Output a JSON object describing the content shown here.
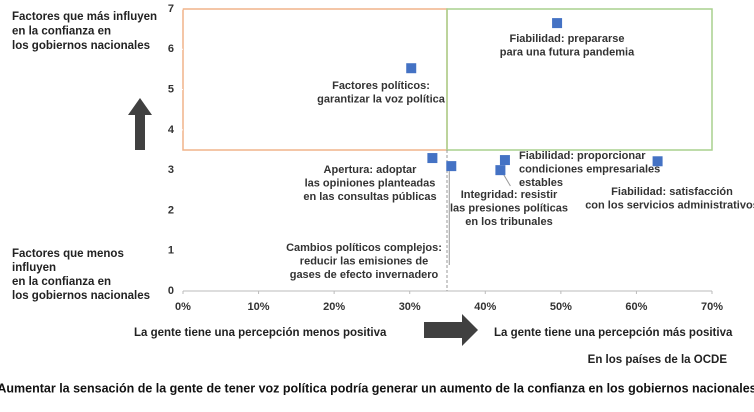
{
  "chart_data": {
    "type": "scatter",
    "x": [
      49.5,
      30.2,
      33,
      35.5,
      42,
      42.6,
      62.8
    ],
    "values": [
      6.65,
      5.53,
      3.3,
      3.1,
      3.0,
      3.25,
      3.22
    ],
    "point_labels": [
      [
        "Fiabilidad: prepararse",
        "para una futura pandemia"
      ],
      [
        "Factores políticos:",
        "garantizar la voz política"
      ],
      [
        "Apertura: adoptar",
        "las opiniones planteadas",
        "en las consultas públicas"
      ],
      [
        "Cambios políticos complejos:",
        "reducir las emisiones de",
        "gases de efecto invernadero"
      ],
      [
        "Integridad: resistir",
        "las presiones políticas",
        "en los tribunales"
      ],
      [
        "Fiabilidad: proporcionar",
        "condiciones empresariales",
        "estables"
      ],
      [
        "Fiabilidad: satisfacción",
        "con los servicios administrativos"
      ]
    ],
    "color": "#4472c4",
    "xlim": [
      0,
      70
    ],
    "xticks": [
      {
        "value": 0,
        "label": "0%"
      },
      {
        "value": 10,
        "label": "10%"
      },
      {
        "value": 20,
        "label": "20%"
      },
      {
        "value": 30,
        "label": "30%"
      },
      {
        "value": 40,
        "label": "40%"
      },
      {
        "value": 50,
        "label": "50%"
      },
      {
        "value": 60,
        "label": "60%"
      },
      {
        "value": 70,
        "label": "70%"
      }
    ],
    "ylim": [
      0,
      7
    ],
    "yticks": [
      0,
      1,
      2,
      3,
      4,
      5,
      6,
      7
    ],
    "y_top_note": [
      "Factores que más influyen",
      "en la confianza en",
      "los gobiernos nacionales"
    ],
    "y_bottom_note": [
      "Factores que menos",
      "influyen",
      "en la confianza en",
      "los gobiernos nacionales"
    ],
    "x_left_note": "La gente tiene una percepción menos positiva",
    "x_right_note": "La gente tiene una percepción más positiva",
    "source_note": "En los países de la OCDE",
    "caption": "Aumentar la sensación de la gente de tener voz política podría generar un aumento de la confianza en los gobiernos nacionales"
  }
}
